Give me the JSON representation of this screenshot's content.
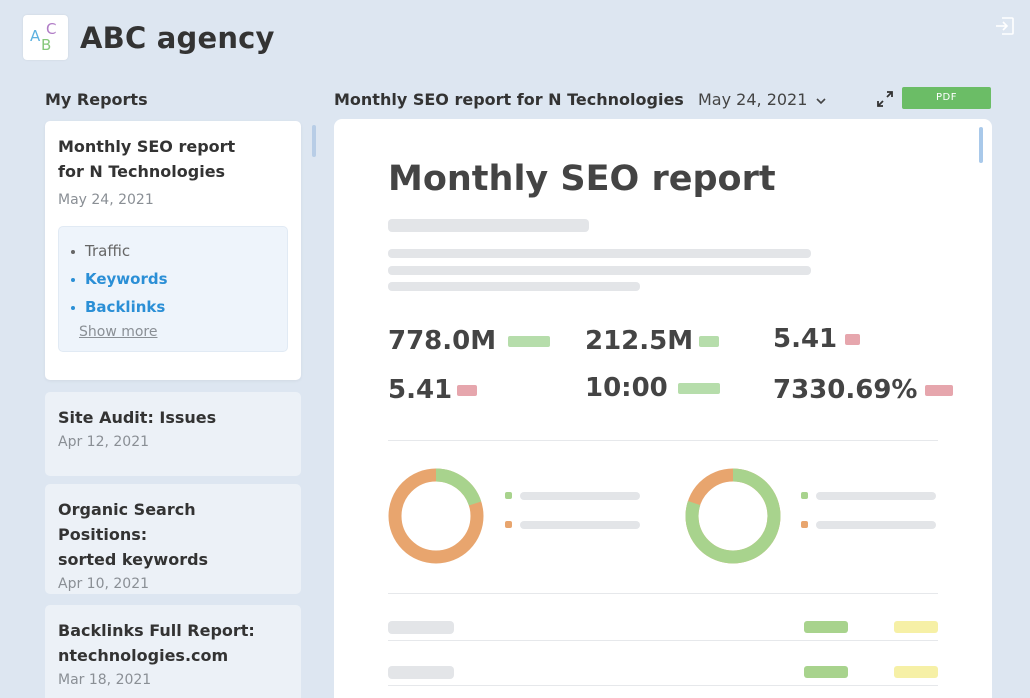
{
  "app": {
    "logo_letters": [
      "A",
      "B",
      "C"
    ],
    "brand_name": "ABC agency"
  },
  "sidebar": {
    "title": "My Reports",
    "reports": [
      {
        "title_lines": [
          "Monthly SEO report",
          "for N Technologies"
        ],
        "date": "May 24, 2021",
        "active": true,
        "sections": [
          {
            "label": "Traffic",
            "style": "plain"
          },
          {
            "label": "Keywords",
            "style": "link"
          },
          {
            "label": "Backlinks",
            "style": "link"
          }
        ],
        "show_more": "Show more"
      },
      {
        "title_lines": [
          "Site Audit: Issues"
        ],
        "date": "Apr 12, 2021"
      },
      {
        "title_lines": [
          "Organic Search Positions:",
          "sorted keywords"
        ],
        "date": "Apr 10, 2021"
      },
      {
        "title_lines": [
          "Backlinks Full Report:",
          "ntechnologies.com"
        ],
        "date": "Mar 18, 2021"
      }
    ]
  },
  "main": {
    "report_title": "Monthly SEO report for N Technologies",
    "selected_date": "May 24, 2021",
    "pdf_label": "PDF",
    "preview": {
      "heading": "Monthly SEO report",
      "metrics": [
        {
          "value": "778.0M",
          "trend": "up"
        },
        {
          "value": "212.5M",
          "trend": "up"
        },
        {
          "value": "5.41",
          "trend": "down"
        },
        {
          "value": "5.41",
          "trend": "down"
        },
        {
          "value": "10:00",
          "trend": "up"
        },
        {
          "value": "7330.69%",
          "trend": "down"
        }
      ],
      "donuts": [
        {
          "green_fraction": 0.2
        },
        {
          "green_fraction": 0.8
        }
      ]
    }
  },
  "colors": {
    "background": "#dde6f1",
    "accent_link": "#2b8fd6",
    "pdf_button": "#6bbd66",
    "chart_green": "#a8d38d",
    "chart_orange": "#e8a56e",
    "tag_green": "#a8d38d",
    "tag_yellow": "#f6f0a6",
    "trend_up": "#b6ddab",
    "trend_down": "#e6a6ad"
  },
  "icons": {
    "exit": "exit-icon",
    "expand": "expand-icon",
    "dropdown": "chevron-down-icon"
  }
}
